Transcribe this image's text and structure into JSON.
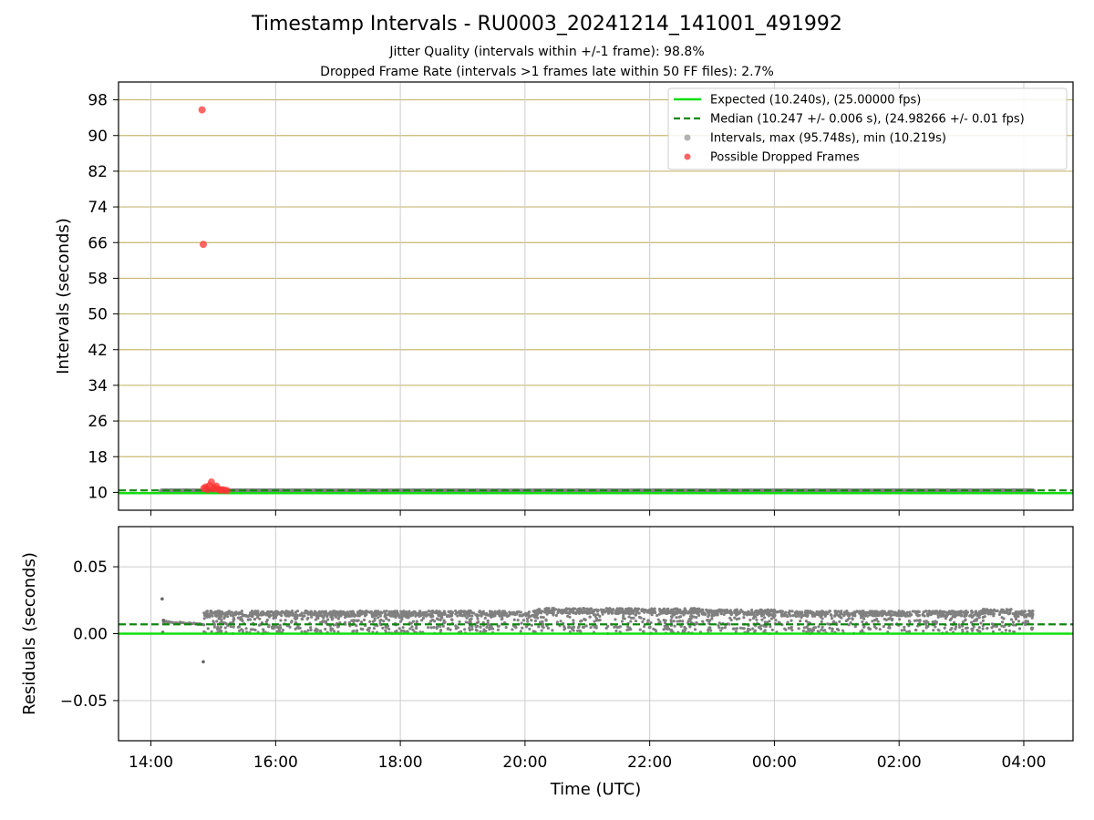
{
  "title": "Timestamp Intervals - RU0003_20241214_141001_491992",
  "subtitle_1": "Jitter Quality (intervals within +/-1 frame): 98.8%",
  "subtitle_2": "Dropped Frame Rate (intervals >1 frames late within 50 FF files): 2.7%",
  "colors": {
    "expected": "#11dd11",
    "median": "#118811",
    "intervals": "#808080",
    "dropped": "#ff3333",
    "hgrid_top": "#c8b870",
    "grid": "#cccccc"
  },
  "chart_data": [
    {
      "type": "scatter",
      "panel": "top",
      "ylabel": "Intervals (seconds)",
      "yticks": [
        10,
        18,
        26,
        34,
        42,
        50,
        58,
        66,
        74,
        82,
        90,
        98
      ],
      "ylim": [
        6.0,
        102.0
      ],
      "xlim_hours": [
        13.48,
        28.79
      ],
      "xticks_hours": [
        14,
        16,
        18,
        20,
        22,
        24,
        26,
        28
      ],
      "grid": true,
      "legend_position": "top-right",
      "expected_value": 10.24,
      "median_value": 10.247,
      "intervals_range_hours": [
        14.17,
        28.15
      ],
      "dropped_points": [
        {
          "t": 14.82,
          "y": 95.748
        },
        {
          "t": 14.84,
          "y": 65.6
        },
        {
          "t": 14.85,
          "y": 10.9
        },
        {
          "t": 14.88,
          "y": 11.2
        },
        {
          "t": 14.91,
          "y": 10.6
        },
        {
          "t": 14.94,
          "y": 11.5
        },
        {
          "t": 14.97,
          "y": 12.3
        },
        {
          "t": 15.0,
          "y": 10.8
        },
        {
          "t": 15.02,
          "y": 11.0
        },
        {
          "t": 15.05,
          "y": 11.4
        },
        {
          "t": 15.08,
          "y": 10.7
        },
        {
          "t": 15.11,
          "y": 10.5
        },
        {
          "t": 15.14,
          "y": 10.6
        },
        {
          "t": 15.18,
          "y": 10.5
        },
        {
          "t": 15.22,
          "y": 10.4
        }
      ],
      "legend": [
        {
          "label": "Expected (10.240s), (25.00000 fps)",
          "style": "line"
        },
        {
          "label": "Median (10.247 +/- 0.006 s), (24.98266 +/- 0.01 fps)",
          "style": "dashed"
        },
        {
          "label": "Intervals, max (95.748s), min (10.219s)",
          "style": "gray-dot"
        },
        {
          "label": "Possible Dropped Frames",
          "style": "red-dot"
        }
      ]
    },
    {
      "type": "scatter",
      "panel": "bottom",
      "ylabel": "Residuals (seconds)",
      "xlabel": "Time (UTC)",
      "yticks": [
        0.05,
        0.0,
        -0.05
      ],
      "ytick_labels": [
        "0.05",
        "0.00",
        "−0.05"
      ],
      "ylim": [
        -0.08,
        0.08
      ],
      "xlim_hours": [
        13.48,
        28.79
      ],
      "xticks_hours": [
        14,
        16,
        18,
        20,
        22,
        24,
        26,
        28
      ],
      "xtick_labels": [
        "14:00",
        "16:00",
        "18:00",
        "20:00",
        "22:00",
        "00:00",
        "02:00",
        "04:00"
      ],
      "grid": true,
      "expected_residual": 0.0,
      "median_residual": 0.007,
      "residual_band": [
        0.0,
        0.017
      ],
      "outliers": [
        {
          "t": 14.18,
          "y": 0.026
        },
        {
          "t": 14.2,
          "y": 0.01
        },
        {
          "t": 14.19,
          "y": 0.001
        },
        {
          "t": 14.84,
          "y": -0.021
        }
      ]
    }
  ]
}
